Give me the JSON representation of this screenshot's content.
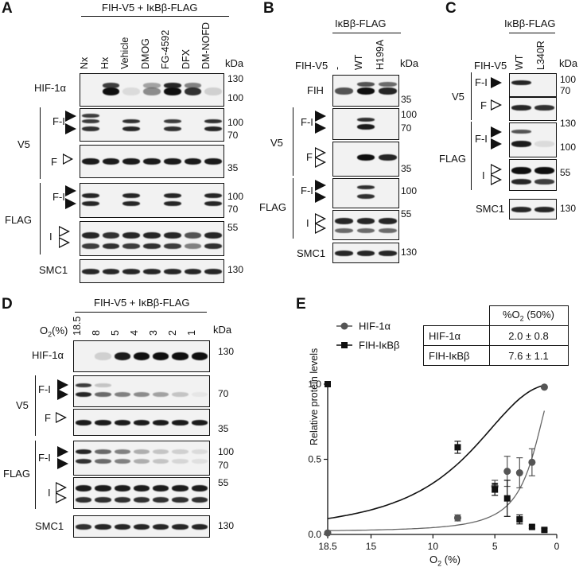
{
  "panels": {
    "A": {
      "letter": "A",
      "header": "FIH-V5 + IκBβ-FLAG",
      "lanes": [
        "Nx",
        "Hx",
        "Vehicle",
        "DMOG",
        "FG-4592",
        "DFX",
        "DM-NOFD"
      ],
      "kda": "kDa",
      "rows": {
        "hif": "HIF-1α",
        "fi1": "F-I",
        "f1": "F",
        "v5": "V5",
        "fi2": "F-I",
        "i2": "I",
        "flag": "FLAG",
        "smc1": "SMC1"
      },
      "markers": {
        "m130a": "130",
        "m100a": "100",
        "m100b": "100",
        "m70a": "70",
        "m35a": "35",
        "m100c": "100",
        "m70b": "70",
        "m55a": "55",
        "m130b": "130"
      }
    },
    "B": {
      "letter": "B",
      "header": "IκBβ-FLAG",
      "fih_v5": "FIH-V5",
      "lanes": [
        "-",
        "WT",
        "H199A"
      ],
      "kda": "kDa",
      "rows": {
        "fih": "FIH",
        "fi1": "F-I",
        "f1": "F",
        "v5": "V5",
        "fi2": "F-I",
        "i2": "I",
        "flag": "FLAG",
        "smc1": "SMC1"
      },
      "markers": {
        "m35a": "35",
        "m100a": "100",
        "m70a": "70",
        "m35b": "35",
        "m100b": "100",
        "m55a": "55",
        "m130a": "130"
      }
    },
    "C": {
      "letter": "C",
      "header": "IκBβ-FLAG",
      "fih_v5": "FIH-V5",
      "lanes": [
        "WT",
        "L340R"
      ],
      "kda": "kDa",
      "rows": {
        "fi1": "F-I",
        "f1": "F",
        "v5": "V5",
        "fi2": "F-I",
        "i2": "I",
        "flag": "FLAG",
        "smc1": "SMC1"
      },
      "markers": {
        "m100a": "100",
        "m70a": "70",
        "m130a": "130",
        "m100b": "100",
        "m55a": "55",
        "m130b": "130"
      }
    },
    "D": {
      "letter": "D",
      "header": "FIH-V5 + IκBβ-FLAG",
      "o2": "O2(%)",
      "lanes": [
        "18.5",
        "8",
        "5",
        "4",
        "3",
        "2",
        "1"
      ],
      "kda": "kDa",
      "rows": {
        "hif": "HIF-1α",
        "fi1": "F-I",
        "f1": "F",
        "v5": "V5",
        "fi2": "F-I",
        "i2": "I",
        "flag": "FLAG",
        "smc1": "SMC1"
      },
      "markers": {
        "m130a": "130",
        "m70a": "70",
        "m35a": "35",
        "m100a": "100",
        "m70b": "70",
        "m55a": "55",
        "m130b": "130"
      }
    },
    "E": {
      "letter": "E",
      "table": {
        "header": "%O2 (50%)",
        "rows": [
          {
            "name": "HIF-1α",
            "value": "2.0 ± 0.8"
          },
          {
            "name": "FIH-IκBβ",
            "value": "7.6 ± 1.1"
          }
        ]
      }
    }
  },
  "chart_data": {
    "type": "scatter",
    "xlabel": "O2 (%)",
    "ylabel": "Relative protein levels",
    "xlim": [
      18.5,
      0
    ],
    "ylim": [
      0,
      1.0
    ],
    "xticks": [
      18.5,
      15,
      10,
      5,
      0
    ],
    "yticks": [
      0.0,
      0.5,
      1.0
    ],
    "legend_placement": "top-left",
    "series": [
      {
        "name": "HIF-1α",
        "marker": "circle",
        "color": "#555555",
        "x": [
          18.5,
          8,
          5,
          4,
          3,
          2,
          1
        ],
        "y": [
          0.01,
          0.11,
          0.32,
          0.42,
          0.41,
          0.48,
          0.98
        ],
        "err": [
          0,
          0.02,
          0.04,
          0.1,
          0.1,
          0.09,
          0
        ]
      },
      {
        "name": "FIH-IκBβ",
        "marker": "square",
        "color": "#111111",
        "x": [
          18.5,
          8,
          5,
          4,
          3,
          2,
          1
        ],
        "y": [
          1.0,
          0.58,
          0.3,
          0.24,
          0.1,
          0.05,
          0.03
        ],
        "err": [
          0,
          0.04,
          0.04,
          0.12,
          0.03,
          0.01,
          0.01
        ]
      }
    ]
  }
}
